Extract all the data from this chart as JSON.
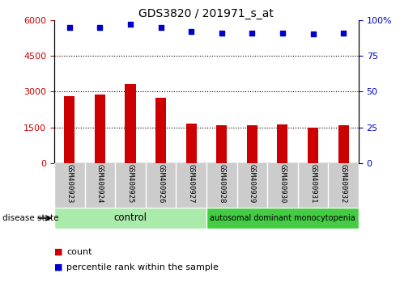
{
  "title": "GDS3820 / 201971_s_at",
  "samples": [
    "GSM400923",
    "GSM400924",
    "GSM400925",
    "GSM400926",
    "GSM400927",
    "GSM400928",
    "GSM400929",
    "GSM400930",
    "GSM400931",
    "GSM400932"
  ],
  "counts": [
    2800,
    2870,
    3300,
    2750,
    1650,
    1575,
    1575,
    1625,
    1500,
    1575
  ],
  "percentile_ranks": [
    95,
    95,
    97,
    95,
    92,
    91,
    91,
    91,
    90,
    91
  ],
  "bar_color": "#cc0000",
  "dot_color": "#0000cc",
  "ylim_left": [
    0,
    6000
  ],
  "ylim_right": [
    0,
    100
  ],
  "yticks_left": [
    0,
    1500,
    3000,
    4500,
    6000
  ],
  "ytick_labels_left": [
    "0",
    "1500",
    "3000",
    "4500",
    "6000"
  ],
  "yticks_right": [
    0,
    25,
    50,
    75,
    100
  ],
  "ytick_labels_right": [
    "0",
    "25",
    "50",
    "75",
    "100%"
  ],
  "n_control": 5,
  "n_disease": 5,
  "control_label": "control",
  "disease_label": "autosomal dominant monocytopenia",
  "disease_state_label": "disease state",
  "legend_count_label": "count",
  "legend_percentile_label": "percentile rank within the sample",
  "control_color": "#aaeaaa",
  "disease_color": "#44cc44",
  "tick_bg_color": "#cccccc",
  "bar_width": 0.35
}
